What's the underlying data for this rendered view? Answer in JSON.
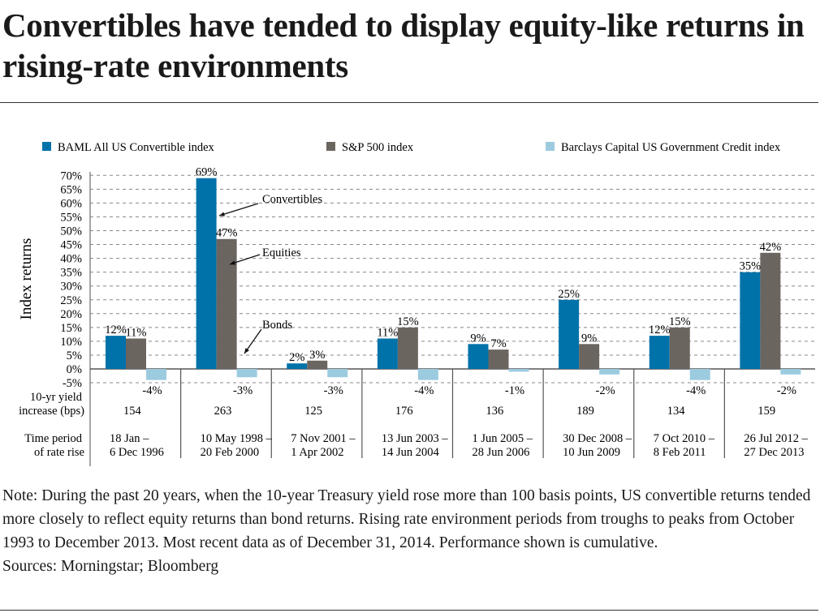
{
  "title": "Convertibles have tended to display equity-like returns in rising-rate environments",
  "note": "Note: During the past 20 years, when the 10-year Treasury yield rose more than 100 basis points, US convertible returns tended more closely to reflect equity returns than bond returns. Rising rate environment periods from troughs to peaks from October 1993 to December 2013. Most recent data as of December 31, 2014. Performance shown is cumulative.",
  "sources": "Sources: Morningstar; Bloomberg",
  "chart_data": {
    "type": "bar",
    "title": "",
    "xlabel": "",
    "ylabel": "Index returns",
    "ylim": [
      -5,
      70
    ],
    "ytick_step": 5,
    "yticks": [
      "70%",
      "65%",
      "60%",
      "55%",
      "50%",
      "45%",
      "40%",
      "35%",
      "30%",
      "25%",
      "20%",
      "15%",
      "10%",
      "5%",
      "0%",
      "-5%"
    ],
    "grid": "horizontal dashed",
    "legend_position": "top",
    "categories": [
      "18 Jan – 6 Dec 1996",
      "10 May 1998 – 20 Feb 2000",
      "7 Nov 2001 – 1 Apr 2002",
      "13 Jun 2003 – 14 Jun 2004",
      "1 Jun 2005 – 28 Jun 2006",
      "30 Dec 2008 – 10 Jun 2009",
      "7 Oct 2010 – 8 Feb 2011",
      "26 Jul 2012 – 27 Dec 2013"
    ],
    "category_lines": [
      [
        "18 Jan –",
        "6 Dec 1996"
      ],
      [
        "10 May 1998 –",
        "20 Feb 2000"
      ],
      [
        "7 Nov 2001 –",
        "1 Apr 2002"
      ],
      [
        "13 Jun 2003 –",
        "14 Jun 2004"
      ],
      [
        "1 Jun 2005 –",
        "28 Jun 2006"
      ],
      [
        "30 Dec 2008 –",
        "10 Jun 2009"
      ],
      [
        "7 Oct 2010 –",
        "8 Feb 2011"
      ],
      [
        "26 Jul 2012 –",
        "27 Dec 2013"
      ]
    ],
    "series": [
      {
        "name": "BAML All US Convertible index",
        "color": "#0072aa",
        "values": [
          12,
          69,
          2,
          11,
          9,
          25,
          12,
          35
        ]
      },
      {
        "name": "S&P 500 index",
        "color": "#6b6560",
        "values": [
          11,
          47,
          3,
          15,
          7,
          9,
          15,
          42
        ]
      },
      {
        "name": "Barclays Capital US Government Credit index",
        "color": "#9ccbe0",
        "values": [
          -4,
          -3,
          -3,
          -4,
          -1,
          -2,
          -4,
          -2
        ]
      }
    ],
    "table_rows": [
      {
        "label": [
          "10-yr yield",
          "increase (bps)"
        ],
        "values": [
          "154",
          "263",
          "125",
          "176",
          "136",
          "189",
          "134",
          "159"
        ]
      },
      {
        "label": [
          "Time period",
          "of rate rise"
        ]
      }
    ],
    "annotations": [
      "Convertibles",
      "Equities",
      "Bonds"
    ]
  }
}
